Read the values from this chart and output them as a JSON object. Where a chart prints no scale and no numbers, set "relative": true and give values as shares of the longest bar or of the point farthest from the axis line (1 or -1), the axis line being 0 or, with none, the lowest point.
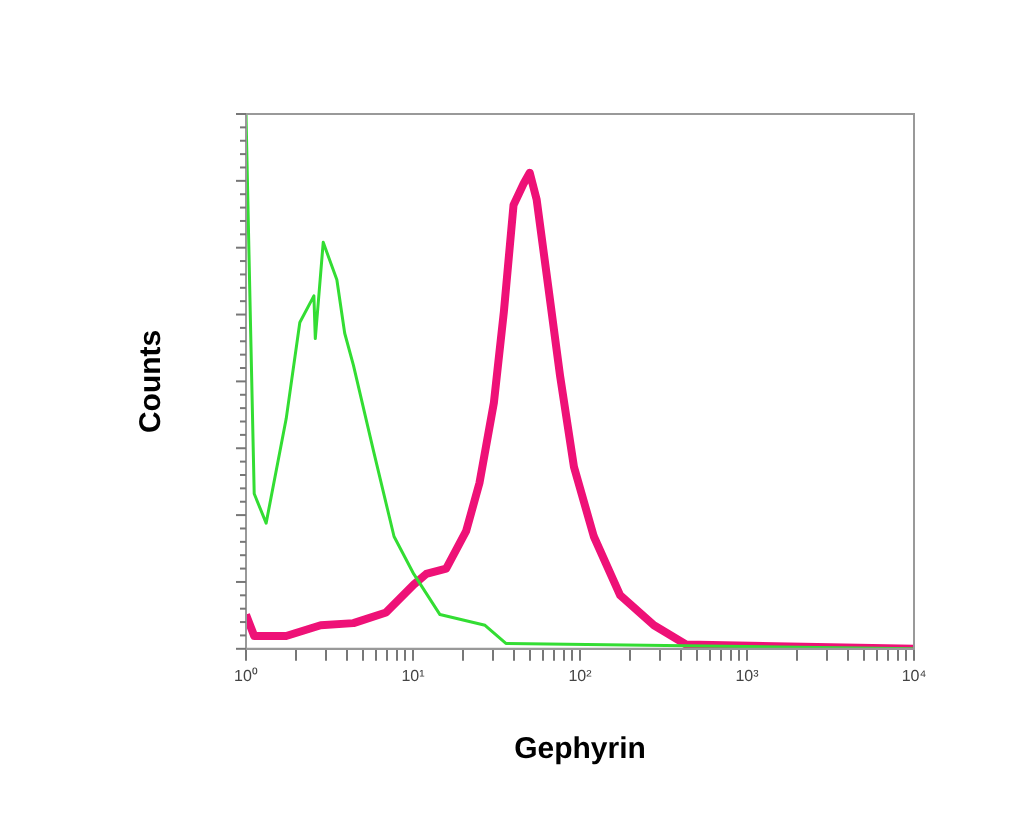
{
  "chart_data": {
    "type": "line",
    "xlabel": "Gephyrin",
    "ylabel": "Counts",
    "relative": true,
    "log": "x",
    "xlim": [
      1,
      10000
    ],
    "xticks": [
      {
        "value": 1,
        "label": "10⁰"
      },
      {
        "value": 2,
        "label": null
      },
      {
        "value": 3,
        "label": null
      },
      {
        "value": 4,
        "label": null
      },
      {
        "value": 5,
        "label": null
      },
      {
        "value": 6,
        "label": null
      },
      {
        "value": 7,
        "label": null
      },
      {
        "value": 8,
        "label": null
      },
      {
        "value": 9,
        "label": null
      },
      {
        "value": 10,
        "label": "10¹"
      },
      {
        "value": 20,
        "label": null
      },
      {
        "value": 30,
        "label": null
      },
      {
        "value": 40,
        "label": null
      },
      {
        "value": 50,
        "label": null
      },
      {
        "value": 60,
        "label": null
      },
      {
        "value": 70,
        "label": null
      },
      {
        "value": 80,
        "label": null
      },
      {
        "value": 90,
        "label": null
      },
      {
        "value": 100,
        "label": "10²"
      },
      {
        "value": 200,
        "label": null
      },
      {
        "value": 300,
        "label": null
      },
      {
        "value": 400,
        "label": null
      },
      {
        "value": 500,
        "label": null
      },
      {
        "value": 600,
        "label": null
      },
      {
        "value": 700,
        "label": null
      },
      {
        "value": 800,
        "label": null
      },
      {
        "value": 900,
        "label": null
      },
      {
        "value": 1000,
        "label": "10³"
      },
      {
        "value": 2000,
        "label": null
      },
      {
        "value": 3000,
        "label": null
      },
      {
        "value": 4000,
        "label": null
      },
      {
        "value": 5000,
        "label": null
      },
      {
        "value": 6000,
        "label": null
      },
      {
        "value": 7000,
        "label": null
      },
      {
        "value": 8000,
        "label": null
      },
      {
        "value": 9000,
        "label": null
      },
      {
        "value": 10000,
        "label": "10⁴"
      }
    ],
    "grid": false,
    "legend": false,
    "marker": "none",
    "series": [
      {
        "color": "#33dd33",
        "x": [
          1,
          1.06,
          1.12,
          1.32,
          1.74,
          2.1,
          2.55,
          2.6,
          2.9,
          3.5,
          3.9,
          4.4,
          5.8,
          7.7,
          10.1,
          14.5,
          27,
          36,
          10000
        ],
        "values": [
          1,
          0.63,
          0.29,
          0.235,
          0.43,
          0.61,
          0.66,
          0.58,
          0.76,
          0.69,
          0.59,
          0.53,
          0.37,
          0.21,
          0.14,
          0.064,
          0.044,
          0.01,
          0
        ]
      },
      {
        "color": "#ee1177",
        "x": [
          1,
          1.12,
          1.74,
          2.8,
          4.4,
          6.9,
          10.1,
          12,
          15.8,
          20.8,
          25,
          30.5,
          35,
          40,
          46,
          50,
          55,
          62.5,
          76,
          92,
          121,
          174,
          277,
          431,
          10000
        ],
        "values": [
          0.064,
          0.024,
          0.024,
          0.044,
          0.048,
          0.068,
          0.12,
          0.14,
          0.15,
          0.22,
          0.31,
          0.46,
          0.63,
          0.83,
          0.87,
          0.89,
          0.84,
          0.71,
          0.51,
          0.34,
          0.21,
          0.1,
          0.044,
          0.008,
          0
        ]
      }
    ]
  }
}
